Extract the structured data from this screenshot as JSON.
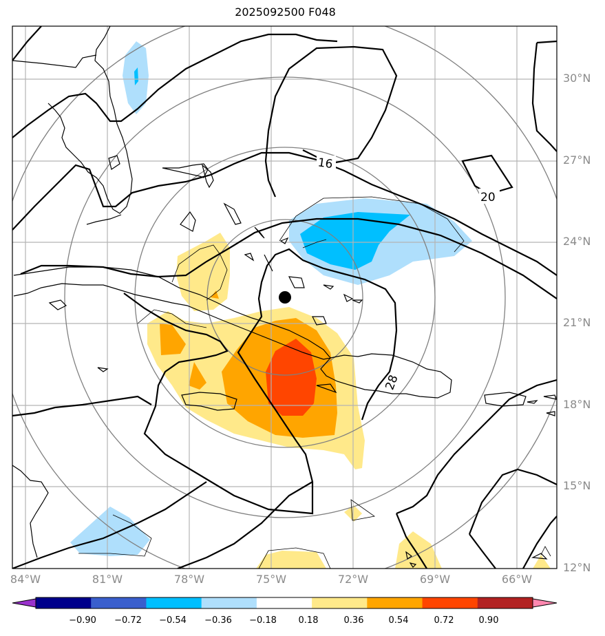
{
  "title": "2025092500 F048",
  "map": {
    "lon_range": [
      -84.0,
      -64.0
    ],
    "lat_range": [
      12.0,
      32.0
    ],
    "lon_labels": [
      "84°W",
      "81°W",
      "78°W",
      "75°W",
      "72°W",
      "69°W",
      "66°W"
    ],
    "lat_labels": [
      "30°N",
      "27°N",
      "24°N",
      "21°N",
      "18°N",
      "15°N",
      "12°N"
    ],
    "storm_center": {
      "lon": -74.7,
      "lat": 21.9
    },
    "contour_labels": [
      "16",
      "20",
      "28"
    ],
    "range_ring_count": 4
  },
  "colorbar": {
    "ticks": [
      "−0.90",
      "−0.72",
      "−0.54",
      "−0.36",
      "−0.18",
      "0.18",
      "0.36",
      "0.54",
      "0.72",
      "0.90"
    ],
    "colors": [
      "#9932cc",
      "#00008b",
      "#3a5fcd",
      "#00bfff",
      "#afdffc",
      "#ffffff",
      "#ffe98a",
      "#ffa500",
      "#ff4500",
      "#b22222",
      "#ff88b0"
    ]
  }
}
